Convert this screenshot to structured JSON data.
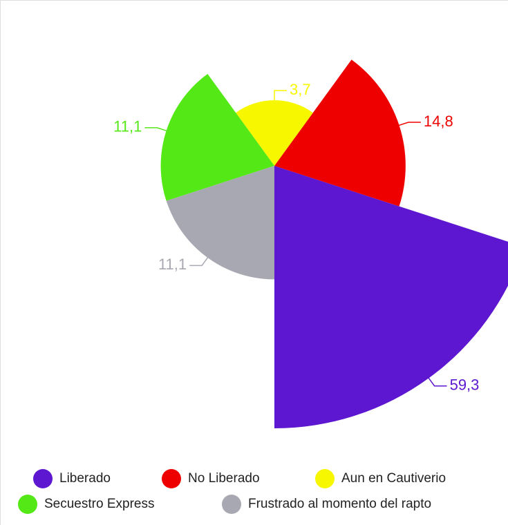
{
  "chart_data": {
    "type": "radial-pie",
    "categories": [
      "Liberado",
      "No Liberado",
      "Aun en Cautiverio",
      "Secuestro Express",
      "Frustrado al momento del rapto"
    ],
    "values": [
      59.3,
      14.8,
      3.7,
      11.1,
      11.1
    ],
    "value_labels": [
      "59,3",
      "14,8",
      "3,7",
      "11,1",
      "11,1"
    ],
    "colors": [
      "#5d17d0",
      "#ee0000",
      "#f7f700",
      "#55e817",
      "#a8a8b2"
    ]
  }
}
